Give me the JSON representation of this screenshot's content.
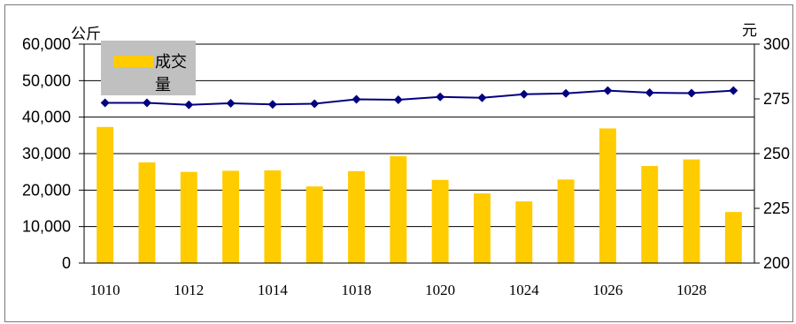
{
  "chart_data": {
    "type": "bar+line",
    "x_tick_labels": [
      "1010",
      "1012",
      "1014",
      "1018",
      "1020",
      "1024",
      "1026",
      "1028"
    ],
    "left_axis": {
      "unit": "公斤",
      "ylim": [
        0,
        60000
      ],
      "ticks": [
        "0",
        "10,000",
        "20,000",
        "30,000",
        "40,000",
        "50,000",
        "60,000"
      ]
    },
    "right_axis": {
      "unit": "元",
      "ylim": [
        200,
        300
      ],
      "ticks": [
        "200",
        "225",
        "250",
        "275",
        "300"
      ]
    },
    "legend": {
      "position": "top-left",
      "bar_label_line1": "成交",
      "bar_label_line2": "量"
    },
    "series": [
      {
        "name": "成交量",
        "type": "bar",
        "axis": "left",
        "color": "#FFCC00",
        "values": [
          37300,
          27600,
          25000,
          25300,
          25400,
          21000,
          25200,
          29300,
          22800,
          19100,
          16900,
          22900,
          36900,
          26600,
          28400,
          14000
        ]
      },
      {
        "type": "line",
        "axis": "right",
        "color": "#000080",
        "values": [
          273.2,
          273.2,
          272.3,
          273.0,
          272.5,
          272.8,
          274.8,
          274.6,
          275.9,
          275.5,
          277.1,
          277.5,
          278.8,
          277.8,
          277.6,
          278.8
        ]
      }
    ],
    "grid": "horizontal"
  }
}
